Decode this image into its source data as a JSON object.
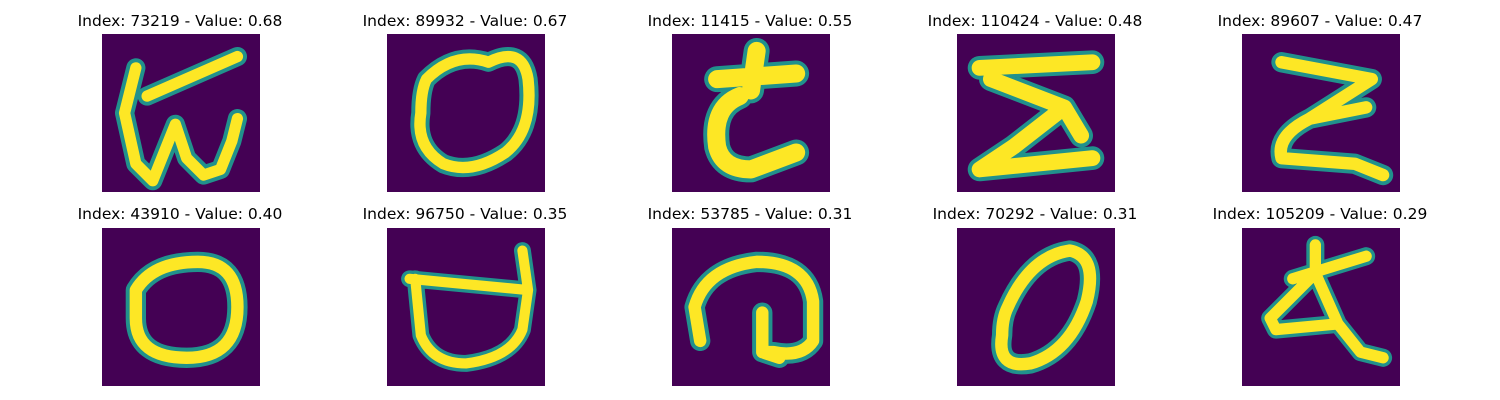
{
  "figure": {
    "colormap": "viridis",
    "background_color": "#440154",
    "stroke_colors": [
      "#21918c",
      "#5ec962",
      "#fde725"
    ],
    "panels": [
      {
        "title": "Index: 73219 - Value: 0.68",
        "index": 73219,
        "value": 0.68,
        "glyph": "glyph-w-like"
      },
      {
        "title": "Index: 89932 - Value: 0.67",
        "index": 89932,
        "value": 0.67,
        "glyph": "glyph-o-like"
      },
      {
        "title": "Index: 11415 - Value: 0.55",
        "index": 11415,
        "value": 0.55,
        "glyph": "glyph-t-like"
      },
      {
        "title": "Index: 110424 - Value: 0.48",
        "index": 110424,
        "value": 0.48,
        "glyph": "glyph-z-like"
      },
      {
        "title": "Index: 89607 - Value: 0.47",
        "index": 89607,
        "value": 0.47,
        "glyph": "glyph-z-like"
      },
      {
        "title": "Index: 43910 - Value: 0.40",
        "index": 43910,
        "value": 0.4,
        "glyph": "glyph-o-like"
      },
      {
        "title": "Index: 96750 - Value: 0.35",
        "index": 96750,
        "value": 0.35,
        "glyph": "glyph-u-like"
      },
      {
        "title": "Index: 53785 - Value: 0.31",
        "index": 53785,
        "value": 0.31,
        "glyph": "glyph-hook-like"
      },
      {
        "title": "Index: 70292 - Value: 0.31",
        "index": 70292,
        "value": 0.31,
        "glyph": "glyph-o-like"
      },
      {
        "title": "Index: 105209 - Value: 0.29",
        "index": 105209,
        "value": 0.29,
        "glyph": "glyph-a-like"
      }
    ]
  }
}
